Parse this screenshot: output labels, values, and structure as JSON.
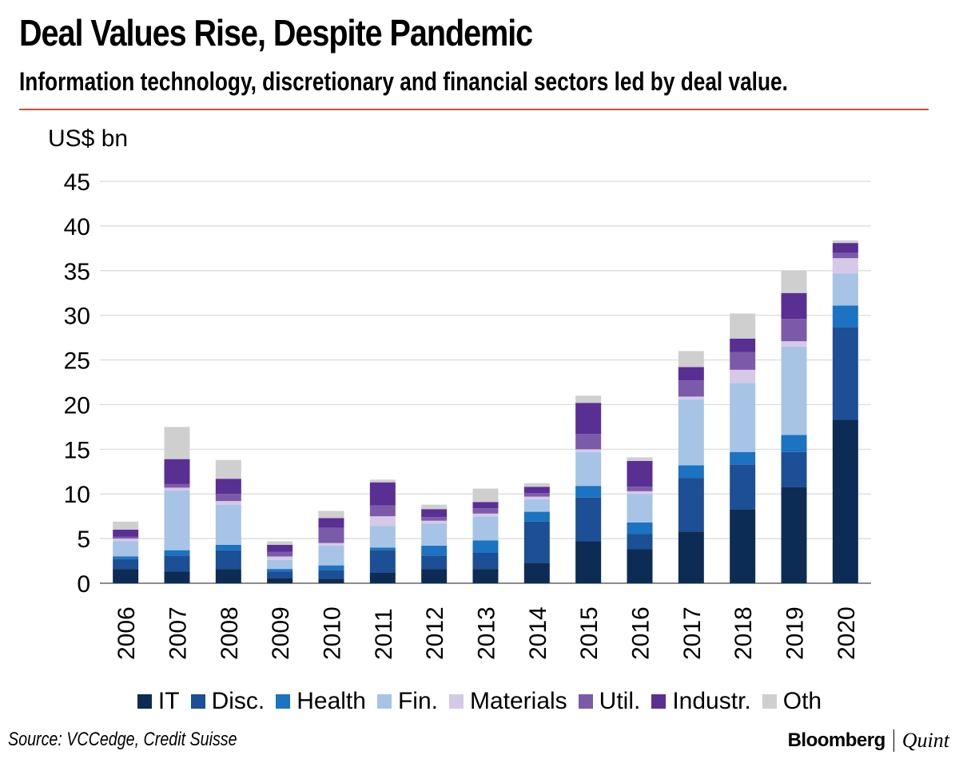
{
  "title": "Deal Values Rise, Despite Pandemic",
  "subtitle": "Information technology, discretionary and financial sectors led by deal value.",
  "source": "Source: VCCedge, Credit Suisse",
  "brand": {
    "primary": "Bloomberg",
    "secondary": "Quint"
  },
  "colors": {
    "rule": "#c8512f",
    "grid": "#d9d9d9"
  },
  "chart_data": {
    "type": "bar",
    "stacked": true,
    "title": "Deal Values Rise, Despite Pandemic",
    "ylabel": "US$ bn",
    "xlabel": "",
    "ylim": [
      0,
      45
    ],
    "yticks": [
      0,
      5,
      10,
      15,
      20,
      25,
      30,
      35,
      40,
      45
    ],
    "grid": true,
    "legend_position": "bottom",
    "categories": [
      "2006",
      "2007",
      "2008",
      "2009",
      "2010",
      "2011",
      "2012",
      "2013",
      "2014",
      "2015",
      "2016",
      "2017",
      "2018",
      "2019",
      "2020"
    ],
    "series": [
      {
        "name": "IT",
        "color": "#0c2c56",
        "values": [
          1.6,
          1.3,
          1.6,
          0.6,
          0.5,
          1.2,
          1.6,
          1.6,
          2.3,
          4.7,
          3.8,
          5.8,
          8.3,
          10.8,
          18.3
        ]
      },
      {
        "name": "Disc.",
        "color": "#1c4f95",
        "values": [
          1.1,
          1.8,
          2.1,
          0.7,
          1.0,
          2.5,
          1.5,
          1.8,
          4.6,
          4.9,
          1.7,
          6.0,
          5.0,
          3.9,
          10.4
        ]
      },
      {
        "name": "Health",
        "color": "#1b73c1",
        "values": [
          0.3,
          0.6,
          0.6,
          0.3,
          0.5,
          0.3,
          1.1,
          1.4,
          1.1,
          1.3,
          1.3,
          1.4,
          1.4,
          1.9,
          2.4
        ]
      },
      {
        "name": "Fin.",
        "color": "#a7c4e6",
        "values": [
          1.7,
          6.7,
          4.5,
          1.0,
          2.2,
          2.4,
          2.5,
          2.7,
          1.4,
          3.8,
          3.2,
          7.4,
          7.7,
          9.9,
          3.6
        ]
      },
      {
        "name": "Materials",
        "color": "#d5c9e7",
        "values": [
          0.3,
          0.3,
          0.4,
          0.4,
          0.3,
          1.1,
          0.3,
          0.3,
          0.3,
          0.3,
          0.3,
          0.3,
          1.5,
          0.6,
          1.7
        ]
      },
      {
        "name": "Util.",
        "color": "#7c5aaa",
        "values": [
          0.2,
          0.4,
          0.8,
          0.5,
          1.7,
          1.2,
          0.4,
          0.6,
          0.4,
          1.7,
          0.5,
          1.8,
          2.0,
          2.5,
          0.6
        ]
      },
      {
        "name": "Industr.",
        "color": "#5a2f94",
        "values": [
          0.8,
          2.8,
          1.7,
          0.8,
          1.1,
          2.6,
          0.9,
          0.7,
          0.7,
          3.5,
          2.9,
          1.5,
          1.5,
          2.9,
          1.1
        ]
      },
      {
        "name": "Oth",
        "color": "#cfcfcf",
        "values": [
          0.9,
          3.6,
          2.1,
          0.4,
          0.8,
          0.3,
          0.5,
          1.5,
          0.4,
          0.8,
          0.4,
          1.8,
          2.8,
          2.5,
          0.3
        ]
      }
    ]
  }
}
